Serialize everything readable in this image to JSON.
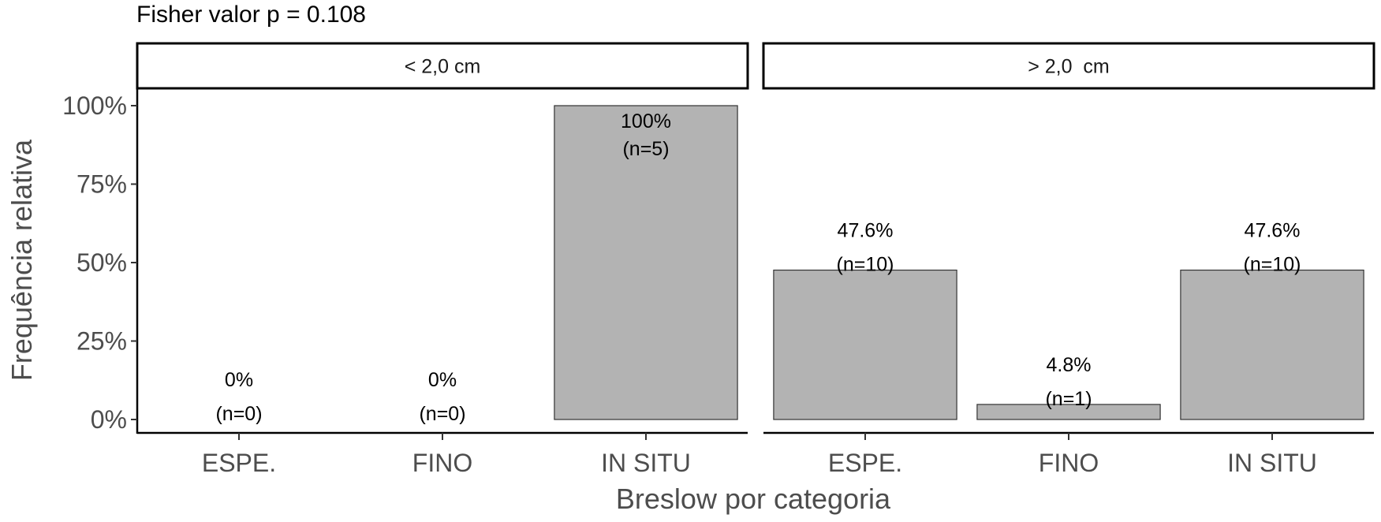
{
  "chart_data": {
    "type": "bar",
    "title": "Fisher valor p = 0.108",
    "xlabel": "Breslow por categoria",
    "ylabel": "Frequência relativa",
    "ylim": [
      0,
      1
    ],
    "yticks": [
      {
        "value": 0,
        "label": "0%"
      },
      {
        "value": 0.25,
        "label": "25%"
      },
      {
        "value": 0.5,
        "label": "50%"
      },
      {
        "value": 0.75,
        "label": "75%"
      },
      {
        "value": 1,
        "label": "100%"
      }
    ],
    "categories": [
      "ESPE.",
      "FINO",
      "IN SITU"
    ],
    "grid": false,
    "bar_color": "#b3b3b3",
    "bar_stroke": "#333333",
    "facets": [
      {
        "label": "< 2,0 cm",
        "values": [
          0,
          0,
          1
        ],
        "percent_labels": [
          "0%",
          "0%",
          "100%"
        ],
        "n_labels": [
          "(n=0)",
          "(n=0)",
          "(n=5)"
        ]
      },
      {
        "label": "> 2,0  cm",
        "values": [
          0.476,
          0.048,
          0.476
        ],
        "percent_labels": [
          "47.6%",
          "4.8%",
          "47.6%"
        ],
        "n_labels": [
          "(n=10)",
          "(n=1)",
          "(n=10)"
        ]
      }
    ]
  }
}
